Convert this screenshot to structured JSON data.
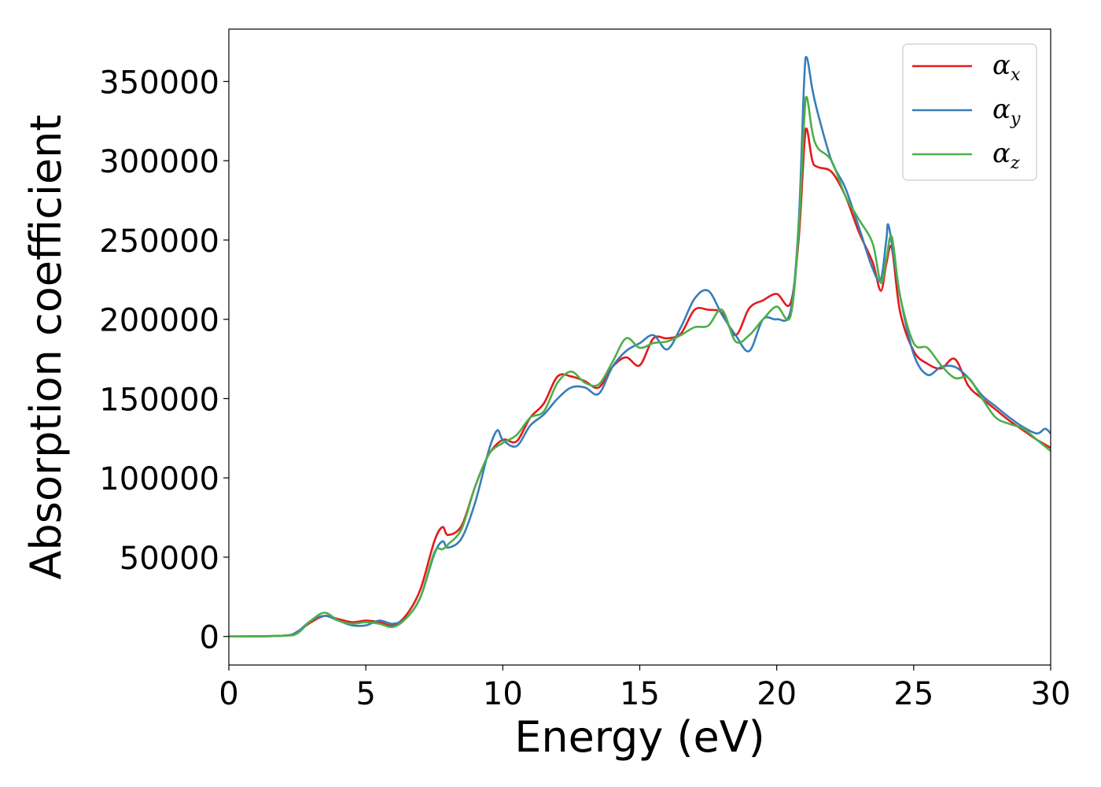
{
  "chart_data": {
    "type": "line",
    "title": "",
    "xlabel": "Energy (eV)",
    "ylabel": "Absorption coefficient",
    "xlim": [
      0,
      30
    ],
    "ylim": [
      -18000,
      383000
    ],
    "xticks": [
      0,
      5,
      10,
      15,
      20,
      25,
      30
    ],
    "yticks": [
      0,
      50000,
      100000,
      150000,
      200000,
      250000,
      300000,
      350000
    ],
    "grid": false,
    "legend_position": "top-right",
    "series": [
      {
        "name": "α",
        "subscript": "x",
        "color": "#e41a1c",
        "x": [
          0,
          2.0,
          2.5,
          3.0,
          3.5,
          4.0,
          4.5,
          5.0,
          5.5,
          6.0,
          6.5,
          7.0,
          7.5,
          7.8,
          8.0,
          8.5,
          9.0,
          9.5,
          10.0,
          10.5,
          11.0,
          11.5,
          12.0,
          12.5,
          13.0,
          13.5,
          14.0,
          14.5,
          15.0,
          15.5,
          16.0,
          16.5,
          17.0,
          17.5,
          18.0,
          18.5,
          19.0,
          19.5,
          20.0,
          20.5,
          20.8,
          21.0,
          21.1,
          21.3,
          21.5,
          22.0,
          22.5,
          23.0,
          23.5,
          23.8,
          24.0,
          24.2,
          24.5,
          25.0,
          25.5,
          26.0,
          26.5,
          27.0,
          27.5,
          28.0,
          28.5,
          29.0,
          29.5,
          30.0
        ],
        "y": [
          0,
          500,
          3000,
          9000,
          13000,
          11000,
          9000,
          10000,
          9000,
          7000,
          14000,
          30000,
          60000,
          69000,
          64000,
          70000,
          95000,
          115000,
          124000,
          123000,
          138000,
          147000,
          164000,
          164000,
          161000,
          157000,
          170000,
          176000,
          171000,
          188000,
          188000,
          191000,
          206000,
          206000,
          204000,
          190000,
          207000,
          212000,
          216000,
          210000,
          250000,
          308000,
          320000,
          300000,
          296000,
          293000,
          278000,
          255000,
          236000,
          218000,
          235000,
          245000,
          205000,
          180000,
          172000,
          169000,
          175000,
          158000,
          150000,
          143000,
          136000,
          130000,
          124000,
          119000
        ]
      },
      {
        "name": "α",
        "subscript": "y",
        "color": "#377eb8",
        "x": [
          0,
          2.0,
          2.5,
          3.0,
          3.5,
          4.0,
          4.5,
          5.0,
          5.5,
          6.0,
          6.5,
          7.0,
          7.5,
          7.8,
          8.0,
          8.5,
          9.0,
          9.5,
          9.8,
          10.0,
          10.5,
          11.0,
          11.5,
          12.0,
          12.5,
          13.0,
          13.5,
          14.0,
          14.5,
          15.0,
          15.5,
          16.0,
          16.5,
          17.0,
          17.5,
          18.0,
          18.5,
          19.0,
          19.5,
          20.0,
          20.5,
          20.8,
          21.0,
          21.1,
          21.3,
          21.5,
          22.0,
          22.5,
          23.0,
          23.5,
          23.8,
          24.0,
          24.1,
          24.5,
          25.0,
          25.5,
          26.0,
          26.5,
          27.0,
          27.5,
          28.0,
          28.5,
          29.0,
          29.5,
          29.8,
          30.0
        ],
        "y": [
          0,
          500,
          3000,
          10000,
          13000,
          10000,
          7000,
          7000,
          10000,
          8000,
          12000,
          25000,
          52000,
          60000,
          56000,
          62000,
          85000,
          118000,
          130000,
          124000,
          120000,
          133000,
          140000,
          150000,
          157000,
          157000,
          153000,
          170000,
          180000,
          185000,
          190000,
          181000,
          195000,
          213000,
          218000,
          203000,
          190000,
          180000,
          200000,
          200000,
          205000,
          260000,
          350000,
          365000,
          345000,
          330000,
          300000,
          283000,
          258000,
          232000,
          225000,
          250000,
          258000,
          215000,
          178000,
          165000,
          170000,
          170000,
          163000,
          152000,
          145000,
          138000,
          132000,
          128000,
          131000,
          128000
        ]
      },
      {
        "name": "α",
        "subscript": "z",
        "color": "#4daf4a",
        "x": [
          0,
          2.0,
          2.5,
          3.0,
          3.5,
          4.0,
          4.5,
          5.0,
          5.5,
          6.0,
          6.5,
          7.0,
          7.5,
          7.8,
          8.0,
          8.5,
          9.0,
          9.5,
          10.0,
          10.5,
          11.0,
          11.5,
          12.0,
          12.5,
          13.0,
          13.5,
          14.0,
          14.5,
          15.0,
          15.5,
          16.0,
          16.5,
          17.0,
          17.5,
          18.0,
          18.5,
          19.0,
          19.5,
          20.0,
          20.5,
          20.8,
          21.0,
          21.1,
          21.3,
          21.5,
          22.0,
          22.5,
          23.0,
          23.5,
          23.8,
          24.0,
          24.2,
          24.5,
          25.0,
          25.5,
          26.0,
          26.5,
          27.0,
          27.5,
          28.0,
          28.5,
          29.0,
          29.5,
          30.0
        ],
        "y": [
          0,
          500,
          2000,
          10000,
          15000,
          10000,
          8000,
          9000,
          8000,
          6000,
          12000,
          25000,
          53000,
          55000,
          58000,
          68000,
          95000,
          115000,
          122000,
          127000,
          138000,
          142000,
          160000,
          167000,
          160000,
          159000,
          173000,
          188000,
          182000,
          185000,
          186000,
          190000,
          195000,
          196000,
          206000,
          186000,
          190000,
          200000,
          208000,
          202000,
          255000,
          325000,
          340000,
          318000,
          308000,
          300000,
          278000,
          263000,
          248000,
          223000,
          238000,
          252000,
          215000,
          185000,
          182000,
          171000,
          163000,
          163000,
          150000,
          138000,
          134000,
          131000,
          124000,
          117000
        ]
      }
    ]
  }
}
